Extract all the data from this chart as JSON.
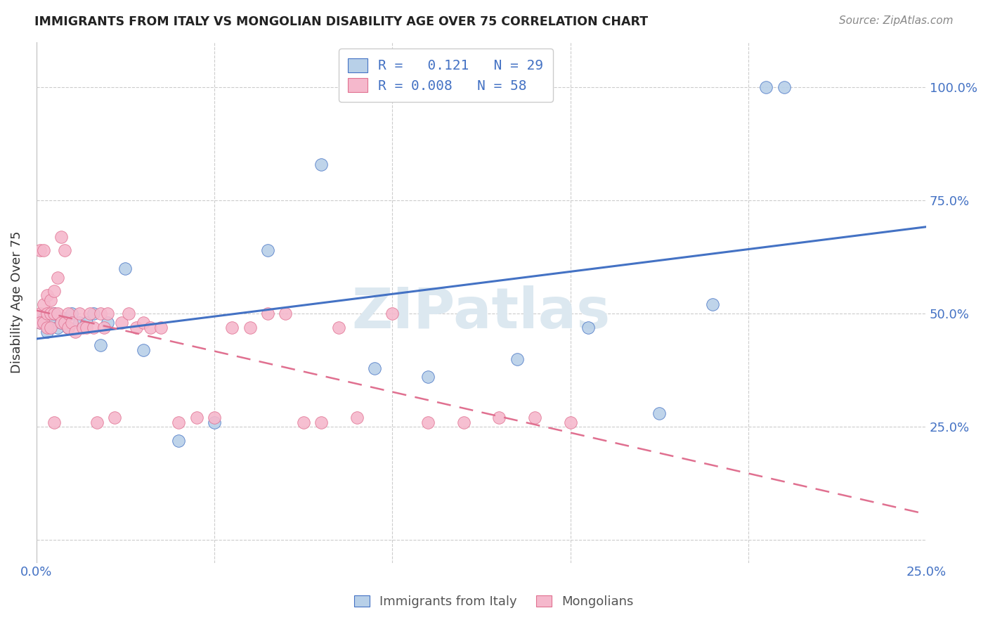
{
  "title": "IMMIGRANTS FROM ITALY VS MONGOLIAN DISABILITY AGE OVER 75 CORRELATION CHART",
  "source": "Source: ZipAtlas.com",
  "ylabel": "Disability Age Over 75",
  "xlim": [
    0.0,
    0.25
  ],
  "ylim": [
    -0.05,
    1.1
  ],
  "ytick_values": [
    0.0,
    0.25,
    0.5,
    0.75,
    1.0
  ],
  "ytick_labels_right": [
    "",
    "25.0%",
    "50.0%",
    "75.0%",
    "100.0%"
  ],
  "xtick_values": [
    0.0,
    0.05,
    0.1,
    0.15,
    0.2,
    0.25
  ],
  "xtick_labels": [
    "0.0%",
    "",
    "",
    "",
    "",
    "25.0%"
  ],
  "legend_R_italy": "0.121",
  "legend_N_italy": "29",
  "legend_R_mongolian": "0.008",
  "legend_N_mongolian": "58",
  "italy_fill_color": "#b8d0e8",
  "italy_edge_color": "#4472c4",
  "mongolian_fill_color": "#f5b8cc",
  "mongolian_edge_color": "#e07090",
  "italy_line_color": "#4472c4",
  "mongolian_line_color": "#e07090",
  "background_color": "#ffffff",
  "grid_color": "#cccccc",
  "title_color": "#222222",
  "source_color": "#888888",
  "axis_label_color": "#333333",
  "tick_color": "#4472c4",
  "watermark_color": "#dce8f0",
  "italy_x": [
    0.001,
    0.002,
    0.003,
    0.004,
    0.005,
    0.006,
    0.007,
    0.008,
    0.009,
    0.01,
    0.012,
    0.014,
    0.016,
    0.018,
    0.02,
    0.025,
    0.03,
    0.04,
    0.05,
    0.065,
    0.08,
    0.095,
    0.11,
    0.135,
    0.155,
    0.175,
    0.19,
    0.205,
    0.21
  ],
  "italy_y": [
    0.48,
    0.49,
    0.46,
    0.48,
    0.5,
    0.47,
    0.48,
    0.49,
    0.47,
    0.5,
    0.48,
    0.48,
    0.5,
    0.43,
    0.48,
    0.6,
    0.42,
    0.22,
    0.26,
    0.64,
    0.83,
    0.38,
    0.36,
    0.4,
    0.47,
    0.28,
    0.52,
    1.0,
    1.0
  ],
  "mongolian_x": [
    0.001,
    0.001,
    0.001,
    0.002,
    0.002,
    0.002,
    0.003,
    0.003,
    0.003,
    0.004,
    0.004,
    0.004,
    0.005,
    0.005,
    0.005,
    0.006,
    0.006,
    0.007,
    0.007,
    0.008,
    0.008,
    0.009,
    0.009,
    0.01,
    0.011,
    0.012,
    0.013,
    0.014,
    0.015,
    0.016,
    0.017,
    0.018,
    0.019,
    0.02,
    0.022,
    0.024,
    0.026,
    0.028,
    0.03,
    0.032,
    0.035,
    0.04,
    0.045,
    0.05,
    0.055,
    0.06,
    0.065,
    0.07,
    0.075,
    0.08,
    0.085,
    0.09,
    0.1,
    0.11,
    0.12,
    0.13,
    0.14,
    0.15
  ],
  "mongolian_y": [
    0.5,
    0.64,
    0.48,
    0.52,
    0.64,
    0.48,
    0.54,
    0.5,
    0.47,
    0.53,
    0.5,
    0.47,
    0.55,
    0.5,
    0.26,
    0.58,
    0.5,
    0.67,
    0.48,
    0.64,
    0.48,
    0.5,
    0.47,
    0.48,
    0.46,
    0.5,
    0.47,
    0.47,
    0.5,
    0.47,
    0.26,
    0.5,
    0.47,
    0.5,
    0.27,
    0.48,
    0.5,
    0.47,
    0.48,
    0.47,
    0.47,
    0.26,
    0.27,
    0.27,
    0.47,
    0.47,
    0.5,
    0.5,
    0.26,
    0.26,
    0.47,
    0.27,
    0.5,
    0.26,
    0.26,
    0.27,
    0.27,
    0.26
  ]
}
